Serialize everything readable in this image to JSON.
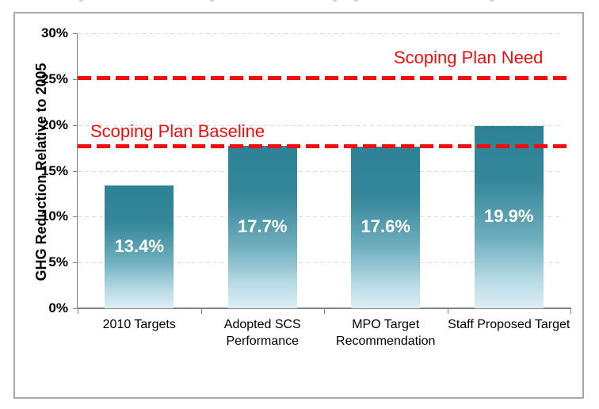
{
  "chart_data": {
    "type": "bar",
    "title": "",
    "xlabel": "",
    "ylabel": "GHG Reduction Relative to 2005",
    "categories": [
      "2010 Targets",
      "Adopted SCS Performance",
      "MPO Target Recommendation",
      "Staff Proposed Target"
    ],
    "values": [
      13.4,
      17.7,
      17.6,
      19.9
    ],
    "value_labels": [
      "13.4%",
      "17.7%",
      "17.6%",
      "19.9%"
    ],
    "ylim": [
      0,
      30
    ],
    "ytick_interval": 5,
    "ytick_labels": [
      "0%",
      "5%",
      "10%",
      "15%",
      "20%",
      "25%",
      "30%"
    ],
    "grid": "horizontal-dashed",
    "legend_position": "none",
    "reference_lines": [
      {
        "label": "Scoping Plan Need",
        "value": 25.1
      },
      {
        "label": "Scoping Plan Baseline",
        "value": 17.7
      }
    ],
    "colors": {
      "bar_top": "#2F8296",
      "bar_bottom": "#DCEEF3",
      "bar_value_text": "#FFFFFF",
      "reference_line": "#F20D0D",
      "reference_text": "#F20D0D",
      "gridline": "#D9D9D9",
      "axis": "#808080",
      "figure_border": "#A6A6A6",
      "text": "#000000",
      "background": "#FFFFFF"
    }
  }
}
